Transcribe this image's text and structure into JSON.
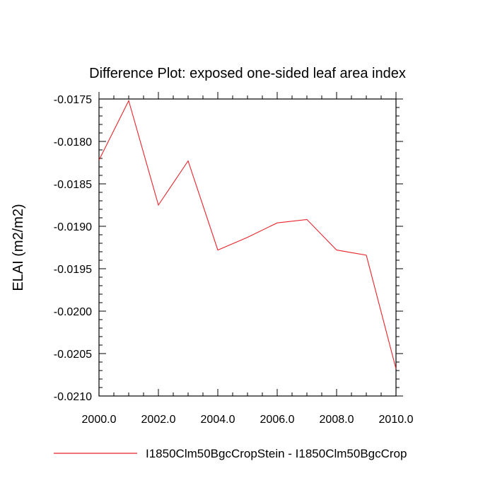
{
  "chart_data": {
    "type": "line",
    "title": "Difference Plot: exposed one-sided leaf area index",
    "xlabel": "",
    "ylabel": "ELAI  (m2/m2)",
    "xlim": [
      2000,
      2010
    ],
    "ylim": [
      -0.021,
      -0.0175
    ],
    "x_ticks": [
      2000,
      2002,
      2004,
      2006,
      2008,
      2010
    ],
    "x_tick_labels": [
      "2000.0",
      "2002.0",
      "2004.0",
      "2006.0",
      "2008.0",
      "2010.0"
    ],
    "y_ticks": [
      -0.0175,
      -0.018,
      -0.0185,
      -0.019,
      -0.0195,
      -0.02,
      -0.0205,
      -0.021
    ],
    "y_tick_labels": [
      "-0.0175",
      "-0.0180",
      "-0.0185",
      "-0.0190",
      "-0.0195",
      "-0.0200",
      "-0.0205",
      "-0.0210"
    ],
    "grid": false,
    "legend_position": "bottom",
    "x": [
      2000,
      2001,
      2002,
      2003,
      2004,
      2005,
      2006,
      2007,
      2008,
      2009,
      2010
    ],
    "series": [
      {
        "name": "I1850Clm50BgcCropStein - I1850Clm50BgcCrop",
        "color": "#e8232a",
        "values": [
          -0.01822,
          -0.01752,
          -0.01875,
          -0.01823,
          -0.01928,
          -0.01913,
          -0.01896,
          -0.01892,
          -0.01928,
          -0.01934,
          -0.02068
        ]
      }
    ]
  }
}
